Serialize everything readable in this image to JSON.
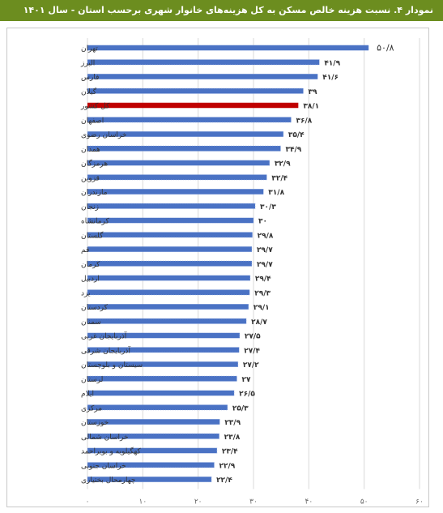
{
  "title": "نمودار ۴. نسبت هزینه خالص مسکن به کل هزینه‌های خانوار شهری برحسب استان - سال ۱۴۰۱",
  "chart_data": {
    "type": "bar",
    "orientation": "horizontal",
    "x_axis_direction": "right-to-left",
    "xlim": [
      0,
      60
    ],
    "x_ticks": [
      0,
      10,
      20,
      30,
      40,
      50,
      60
    ],
    "x_tick_labels": [
      "۰",
      "۱۰",
      "۲۰",
      "۳۰",
      "۴۰",
      "۵۰",
      "۶۰"
    ],
    "grid": true,
    "legend": "none",
    "categories": [
      "تهران",
      "البرز",
      "فارس",
      "گیلان",
      "کل کشور",
      "اصفهان",
      "خراسان رضوی",
      "همدان",
      "هرمزگان",
      "قزوین",
      "مازندران",
      "زنجان",
      "کرمانشاه",
      "گلستان",
      "قم",
      "کرمان",
      "اردبیل",
      "یزد",
      "کردستان",
      "سمنان",
      "آذربایجان غربی",
      "آذربایجان شرقی",
      "سیستان و بلوچستان",
      "لرستان",
      "ایلام",
      "مرکزی",
      "خوزستان",
      "خراسان شمالی",
      "کهگیلویه و بویراحمد",
      "خراسان جنوبی",
      "چهارمحال بختیاری"
    ],
    "values": [
      50.8,
      41.9,
      41.6,
      39,
      38.1,
      36.8,
      35.4,
      34.9,
      32.9,
      32.4,
      31.8,
      30.3,
      30,
      29.8,
      29.7,
      29.7,
      29.4,
      29.3,
      29.1,
      28.7,
      27.5,
      27.4,
      27.2,
      27,
      26.5,
      25.3,
      23.9,
      23.8,
      23.4,
      22.9,
      22.4
    ],
    "value_labels": [
      "۵۰/۸",
      "۴۱/۹",
      "۴۱/۶",
      "۳۹",
      "۳۸/۱",
      "۳۶/۸",
      "۳۵/۴",
      "۳۴/۹",
      "۳۲/۹",
      "۳۲/۴",
      "۳۱/۸",
      "۳۰/۳",
      "۳۰",
      "۲۹/۸",
      "۲۹/۷",
      "۲۹/۷",
      "۲۹/۴",
      "۲۹/۳",
      "۲۹/۱",
      "۲۸/۷",
      "۲۷/۵",
      "۲۷/۴",
      "۲۷/۲",
      "۲۷",
      "۲۶/۵",
      "۲۵/۳",
      "۲۳/۹",
      "۲۳/۸",
      "۲۳/۴",
      "۲۲/۹",
      "۲۲/۴"
    ],
    "highlight_category": "کل کشور",
    "colors": {
      "bar": "#4a72c4",
      "highlight": "#c00000",
      "title_background": "#6c8d1f"
    }
  }
}
